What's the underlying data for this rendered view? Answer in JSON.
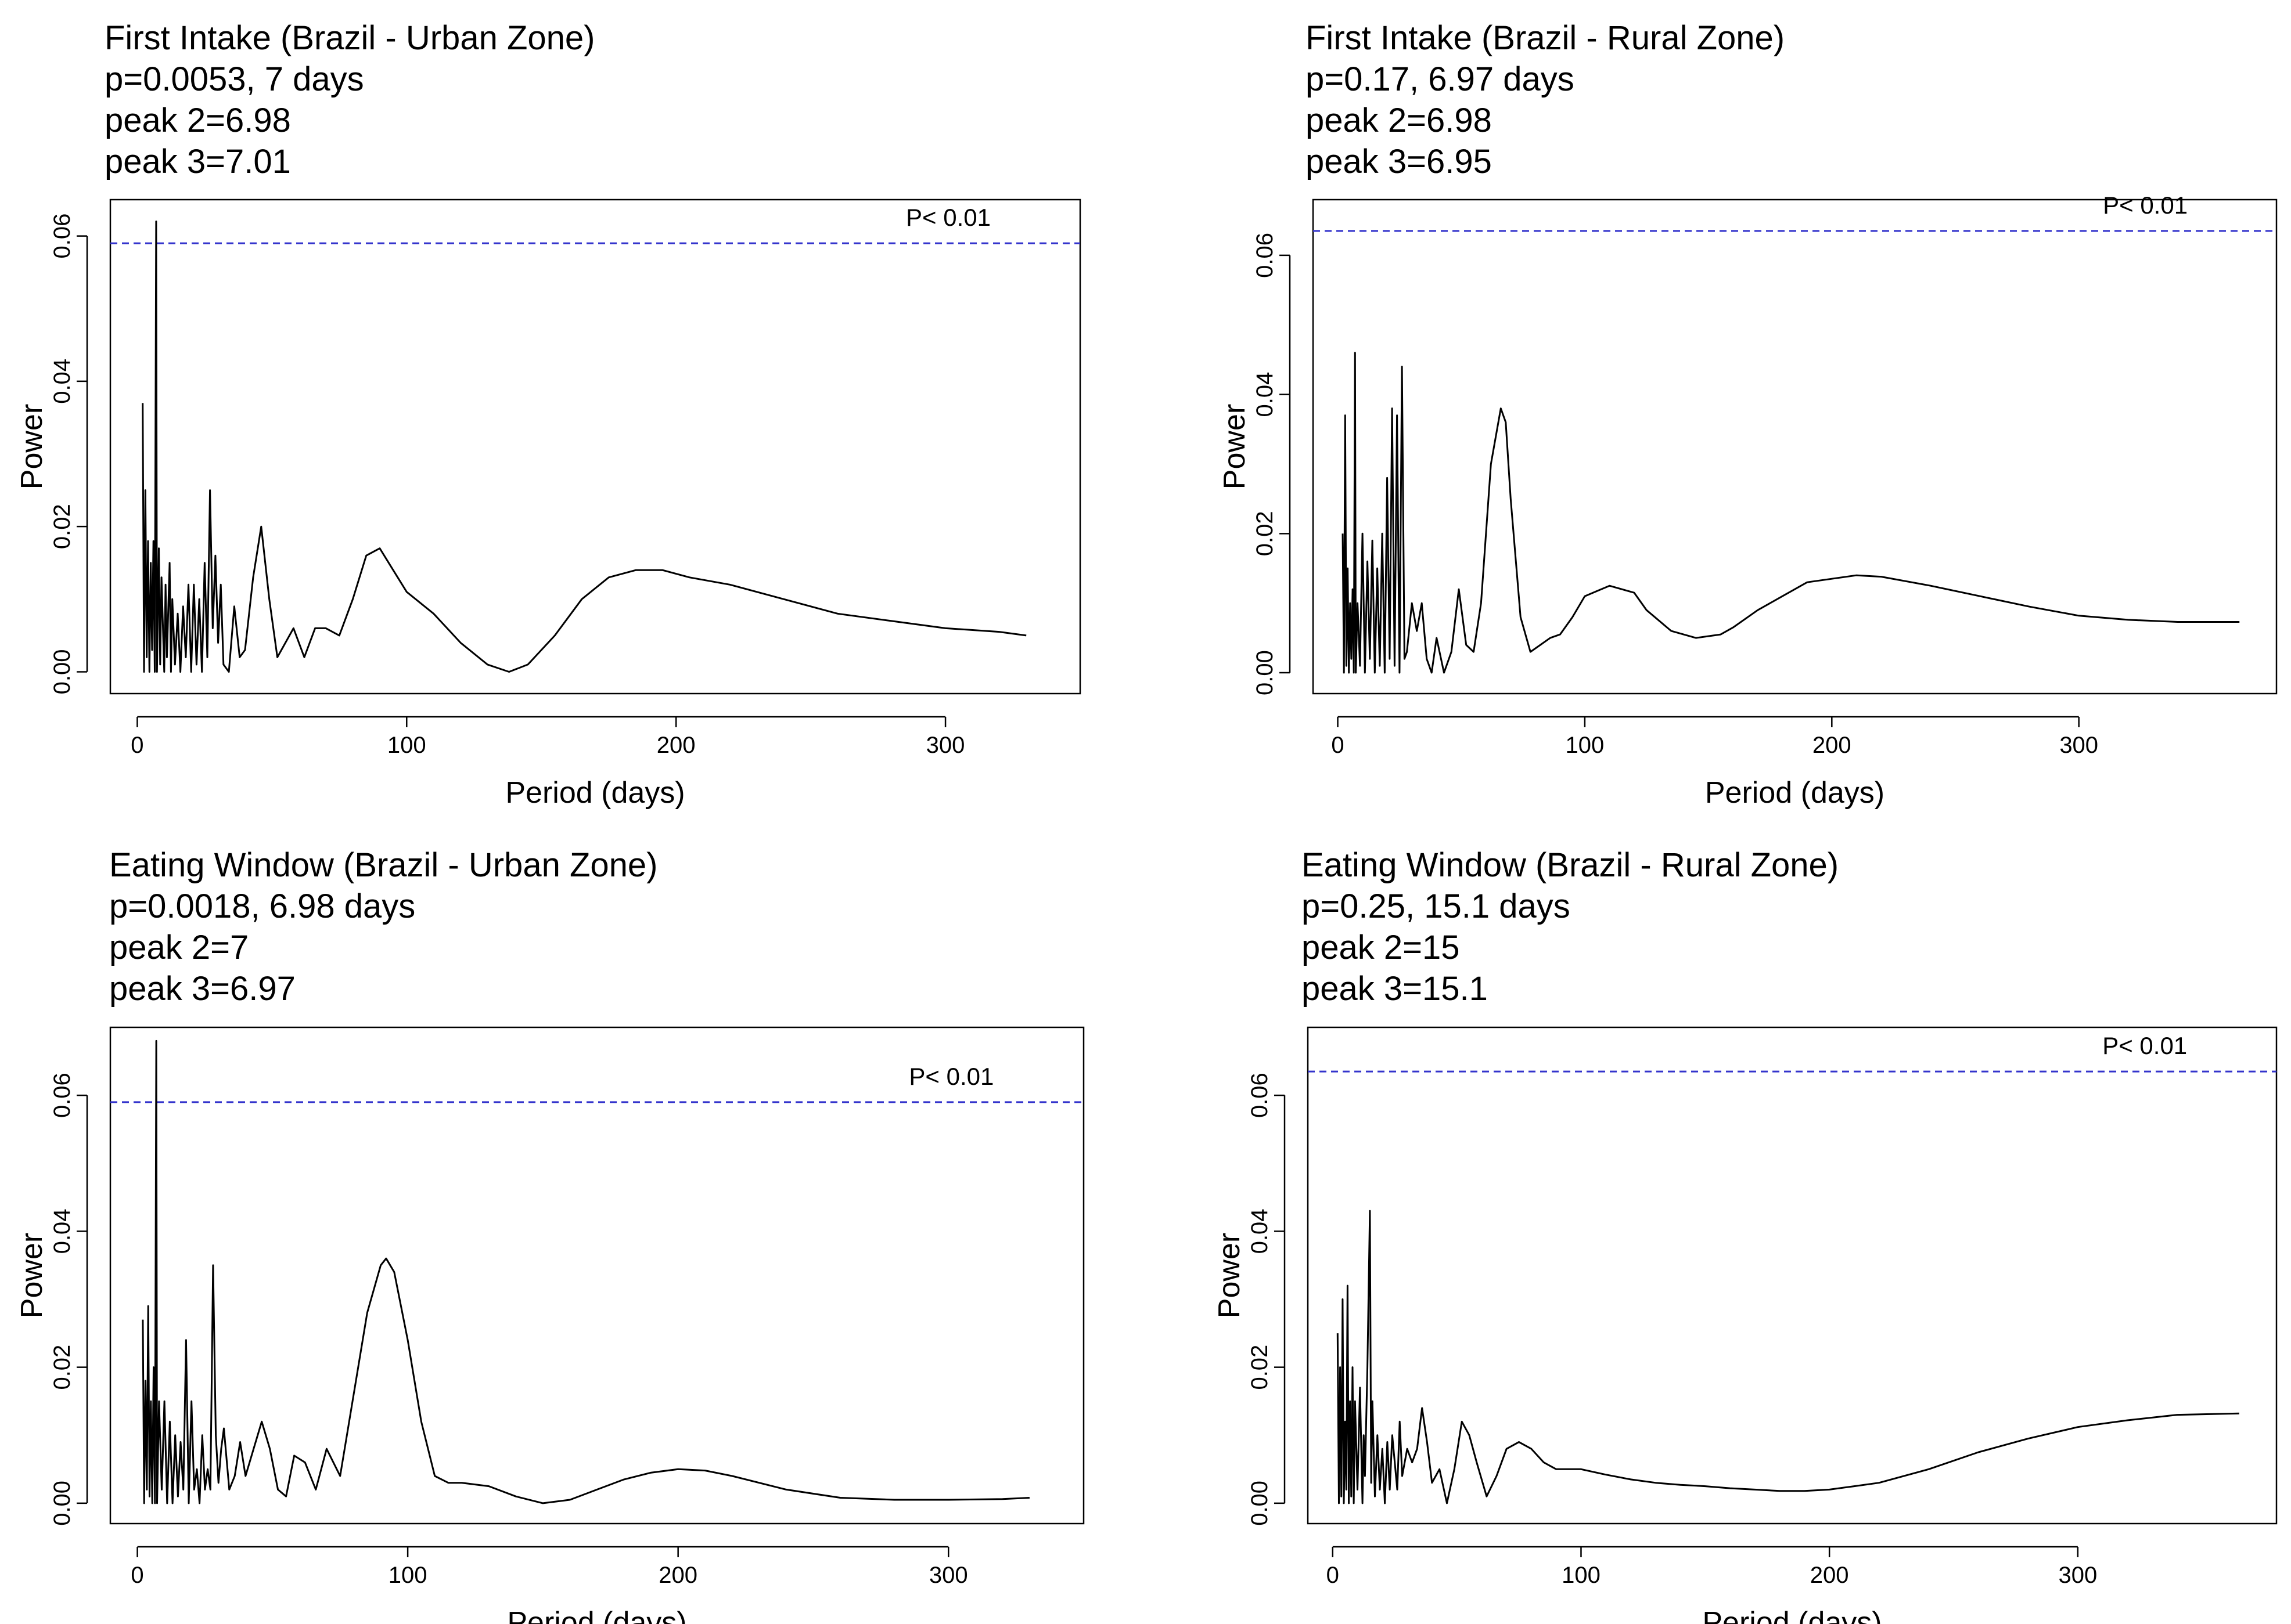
{
  "chart_data": [
    {
      "type": "line",
      "title_lines": [
        "First Intake (Brazil - Urban Zone)",
        "p=0.0053, 7 days",
        "peak 2=6.98",
        "peak 3=7.01"
      ],
      "xlabel": "Period (days)",
      "ylabel": "Power",
      "xlim": [
        -10,
        350
      ],
      "ylim": [
        -0.003,
        0.065
      ],
      "xticks": [
        0,
        100,
        200,
        300
      ],
      "xtick_labels": [
        "0",
        "100",
        "200",
        "300"
      ],
      "yticks": [
        0,
        0.02,
        0.04,
        0.06
      ],
      "ytick_labels": [
        "0.00",
        "0.02",
        "0.04",
        "0.06"
      ],
      "threshold": {
        "value": 0.059,
        "label": "P< 0.01",
        "color": "#3333cc"
      },
      "grid": false,
      "series": [
        {
          "color": "#000000",
          "x": [
            2,
            2.5,
            3,
            3.5,
            4,
            4.5,
            5,
            5.5,
            6,
            6.5,
            7,
            7.3,
            8,
            8.5,
            9,
            10,
            10.5,
            11,
            12,
            12.5,
            13,
            14,
            15,
            16,
            17,
            18,
            19,
            20,
            21,
            22,
            23,
            24,
            25,
            26,
            27,
            28,
            29,
            30,
            31,
            32,
            34,
            36,
            38,
            40,
            43,
            46,
            49,
            52,
            55,
            58,
            62,
            66,
            70,
            75,
            80,
            85,
            90,
            95,
            100,
            110,
            120,
            130,
            138,
            145,
            155,
            165,
            175,
            185,
            195,
            205,
            220,
            240,
            260,
            280,
            300,
            320,
            330
          ],
          "y": [
            0.037,
            0.0,
            0.025,
            0.002,
            0.018,
            0.0,
            0.015,
            0.003,
            0.018,
            0.0,
            0.062,
            0.0,
            0.017,
            0.001,
            0.013,
            0.0,
            0.012,
            0.002,
            0.015,
            0.0,
            0.01,
            0.001,
            0.008,
            0.0,
            0.009,
            0.002,
            0.012,
            0.0,
            0.012,
            0.001,
            0.01,
            0.0,
            0.015,
            0.002,
            0.025,
            0.006,
            0.016,
            0.004,
            0.012,
            0.001,
            0.0,
            0.009,
            0.002,
            0.003,
            0.013,
            0.02,
            0.01,
            0.002,
            0.004,
            0.006,
            0.002,
            0.006,
            0.006,
            0.005,
            0.01,
            0.016,
            0.017,
            0.014,
            0.011,
            0.008,
            0.004,
            0.001,
            0.0,
            0.001,
            0.005,
            0.01,
            0.013,
            0.014,
            0.014,
            0.013,
            0.012,
            0.01,
            0.008,
            0.007,
            0.006,
            0.0055,
            0.005
          ]
        }
      ]
    },
    {
      "type": "line",
      "title_lines": [
        "First Intake (Brazil - Rural Zone)",
        "p=0.17, 6.97 days",
        "peak 2=6.98",
        "peak 3=6.95"
      ],
      "xlabel": "Period (days)",
      "ylabel": "Power",
      "xlim": [
        -10,
        380
      ],
      "ylim": [
        -0.003,
        0.068
      ],
      "xticks": [
        0,
        100,
        200,
        300
      ],
      "xtick_labels": [
        "0",
        "100",
        "200",
        "300"
      ],
      "yticks": [
        0,
        0.02,
        0.04,
        0.06
      ],
      "ytick_labels": [
        "0.00",
        "0.02",
        "0.04",
        "0.06"
      ],
      "threshold": {
        "value": 0.0635,
        "label": "P< 0.01",
        "color": "#3333cc"
      },
      "grid": false,
      "series": [
        {
          "color": "#000000",
          "x": [
            2,
            2.5,
            3,
            3.5,
            4,
            4.5,
            5,
            5.5,
            6,
            6.5,
            7,
            7.3,
            8,
            9,
            10,
            11,
            12,
            13,
            14,
            15,
            16,
            17,
            18,
            19,
            20,
            21,
            22,
            23,
            24,
            25,
            26,
            27,
            28,
            30,
            32,
            34,
            36,
            38,
            40,
            43,
            46,
            49,
            52,
            55,
            58,
            62,
            66,
            68,
            70,
            74,
            78,
            82,
            86,
            90,
            95,
            100,
            110,
            120,
            125,
            135,
            145,
            155,
            160,
            170,
            180,
            190,
            200,
            210,
            220,
            240,
            260,
            280,
            300,
            320,
            340,
            365
          ],
          "y": [
            0.02,
            0.0,
            0.037,
            0.001,
            0.015,
            0.0,
            0.01,
            0.002,
            0.012,
            0.0,
            0.046,
            0.0,
            0.01,
            0.001,
            0.02,
            0.0,
            0.016,
            0.002,
            0.019,
            0.0,
            0.015,
            0.001,
            0.02,
            0.0,
            0.028,
            0.002,
            0.038,
            0.001,
            0.037,
            0.0,
            0.044,
            0.002,
            0.003,
            0.01,
            0.006,
            0.01,
            0.002,
            0.0,
            0.005,
            0.0,
            0.003,
            0.012,
            0.004,
            0.003,
            0.01,
            0.03,
            0.038,
            0.036,
            0.025,
            0.008,
            0.003,
            0.004,
            0.005,
            0.0055,
            0.008,
            0.011,
            0.0125,
            0.0115,
            0.009,
            0.006,
            0.005,
            0.0055,
            0.0065,
            0.009,
            0.011,
            0.013,
            0.0135,
            0.014,
            0.0138,
            0.0125,
            0.011,
            0.0095,
            0.0082,
            0.0076,
            0.0073,
            0.0073
          ]
        }
      ]
    },
    {
      "type": "line",
      "title_lines": [
        "Eating Window (Brazil - Urban Zone)",
        "p=0.0018, 6.98 days",
        "peak 2=7",
        "peak 3=6.97"
      ],
      "xlabel": "Period (days)",
      "ylabel": "Power",
      "xlim": [
        -10,
        350
      ],
      "ylim": [
        -0.003,
        0.07
      ],
      "xticks": [
        0,
        100,
        200,
        300
      ],
      "xtick_labels": [
        "0",
        "100",
        "200",
        "300"
      ],
      "yticks": [
        0,
        0.02,
        0.04,
        0.06
      ],
      "ytick_labels": [
        "0.00",
        "0.02",
        "0.04",
        "0.06"
      ],
      "threshold": {
        "value": 0.059,
        "label": "P< 0.01",
        "color": "#3333cc"
      },
      "grid": false,
      "series": [
        {
          "color": "#000000",
          "x": [
            2,
            2.5,
            3,
            3.5,
            4,
            4.5,
            5,
            5.5,
            6,
            6.5,
            7,
            7.3,
            8,
            9,
            10,
            11,
            12,
            13,
            14,
            15,
            16,
            17,
            18,
            19,
            20,
            21,
            22,
            23,
            24,
            25,
            26,
            27,
            28,
            29,
            30,
            31,
            32,
            34,
            36,
            38,
            40,
            43,
            46,
            49,
            52,
            55,
            58,
            62,
            66,
            70,
            75,
            80,
            85,
            90,
            92,
            95,
            100,
            105,
            110,
            115,
            120,
            130,
            140,
            150,
            160,
            170,
            180,
            190,
            200,
            210,
            220,
            240,
            260,
            280,
            300,
            320,
            330
          ],
          "y": [
            0.027,
            0.0,
            0.018,
            0.002,
            0.029,
            0.001,
            0.015,
            0.0,
            0.02,
            0.0,
            0.068,
            0.0,
            0.015,
            0.002,
            0.015,
            0.0,
            0.012,
            0.0,
            0.01,
            0.001,
            0.009,
            0.002,
            0.024,
            0.0,
            0.015,
            0.002,
            0.005,
            0.0,
            0.01,
            0.002,
            0.005,
            0.002,
            0.035,
            0.01,
            0.003,
            0.008,
            0.011,
            0.002,
            0.004,
            0.009,
            0.004,
            0.008,
            0.012,
            0.008,
            0.002,
            0.001,
            0.007,
            0.006,
            0.002,
            0.008,
            0.004,
            0.016,
            0.028,
            0.035,
            0.036,
            0.034,
            0.024,
            0.012,
            0.004,
            0.003,
            0.003,
            0.0025,
            0.001,
            0.0,
            0.0005,
            0.002,
            0.0035,
            0.0045,
            0.005,
            0.0048,
            0.004,
            0.002,
            0.0008,
            0.0005,
            0.0005,
            0.0006,
            0.0008
          ]
        }
      ]
    },
    {
      "type": "line",
      "title_lines": [
        "Eating Window (Brazil - Rural Zone)",
        "p=0.25, 15.1 days",
        "peak 2=15",
        "peak 3=15.1"
      ],
      "xlabel": "Period (days)",
      "ylabel": "Power",
      "xlim": [
        -10,
        380
      ],
      "ylim": [
        -0.003,
        0.07
      ],
      "xticks": [
        0,
        100,
        200,
        300
      ],
      "xtick_labels": [
        "0",
        "100",
        "200",
        "300"
      ],
      "yticks": [
        0,
        0.02,
        0.04,
        0.06
      ],
      "ytick_labels": [
        "0.00",
        "0.02",
        "0.04",
        "0.06"
      ],
      "threshold": {
        "value": 0.0635,
        "label": "P< 0.01",
        "color": "#3333cc"
      },
      "grid": false,
      "series": [
        {
          "color": "#000000",
          "x": [
            2,
            2.5,
            3,
            3.5,
            4,
            4.5,
            5,
            5.5,
            6,
            6.5,
            7,
            7.5,
            8,
            8.5,
            9,
            10,
            11,
            12,
            12.5,
            13,
            14,
            15,
            15.5,
            16,
            17,
            18,
            19,
            20,
            21,
            22,
            23,
            24,
            26,
            27,
            28,
            30,
            32,
            34,
            36,
            38,
            40,
            43,
            46,
            49,
            52,
            55,
            58,
            62,
            66,
            70,
            75,
            80,
            85,
            90,
            100,
            110,
            120,
            130,
            140,
            150,
            160,
            170,
            180,
            190,
            200,
            210,
            220,
            240,
            260,
            280,
            300,
            320,
            340,
            365
          ],
          "y": [
            0.025,
            0.0,
            0.02,
            0.001,
            0.03,
            0.0,
            0.012,
            0.002,
            0.032,
            0.0,
            0.015,
            0.001,
            0.02,
            0.0,
            0.015,
            0.002,
            0.017,
            0.0,
            0.01,
            0.004,
            0.02,
            0.043,
            0.003,
            0.015,
            0.001,
            0.01,
            0.002,
            0.008,
            0.0,
            0.009,
            0.002,
            0.01,
            0.002,
            0.012,
            0.004,
            0.008,
            0.006,
            0.008,
            0.014,
            0.009,
            0.003,
            0.005,
            0.0,
            0.005,
            0.012,
            0.01,
            0.006,
            0.001,
            0.004,
            0.008,
            0.009,
            0.008,
            0.006,
            0.005,
            0.005,
            0.0042,
            0.0035,
            0.003,
            0.0027,
            0.0025,
            0.0022,
            0.002,
            0.0018,
            0.0018,
            0.002,
            0.0025,
            0.003,
            0.005,
            0.0075,
            0.0095,
            0.0112,
            0.0122,
            0.013,
            0.0132
          ]
        }
      ]
    }
  ]
}
